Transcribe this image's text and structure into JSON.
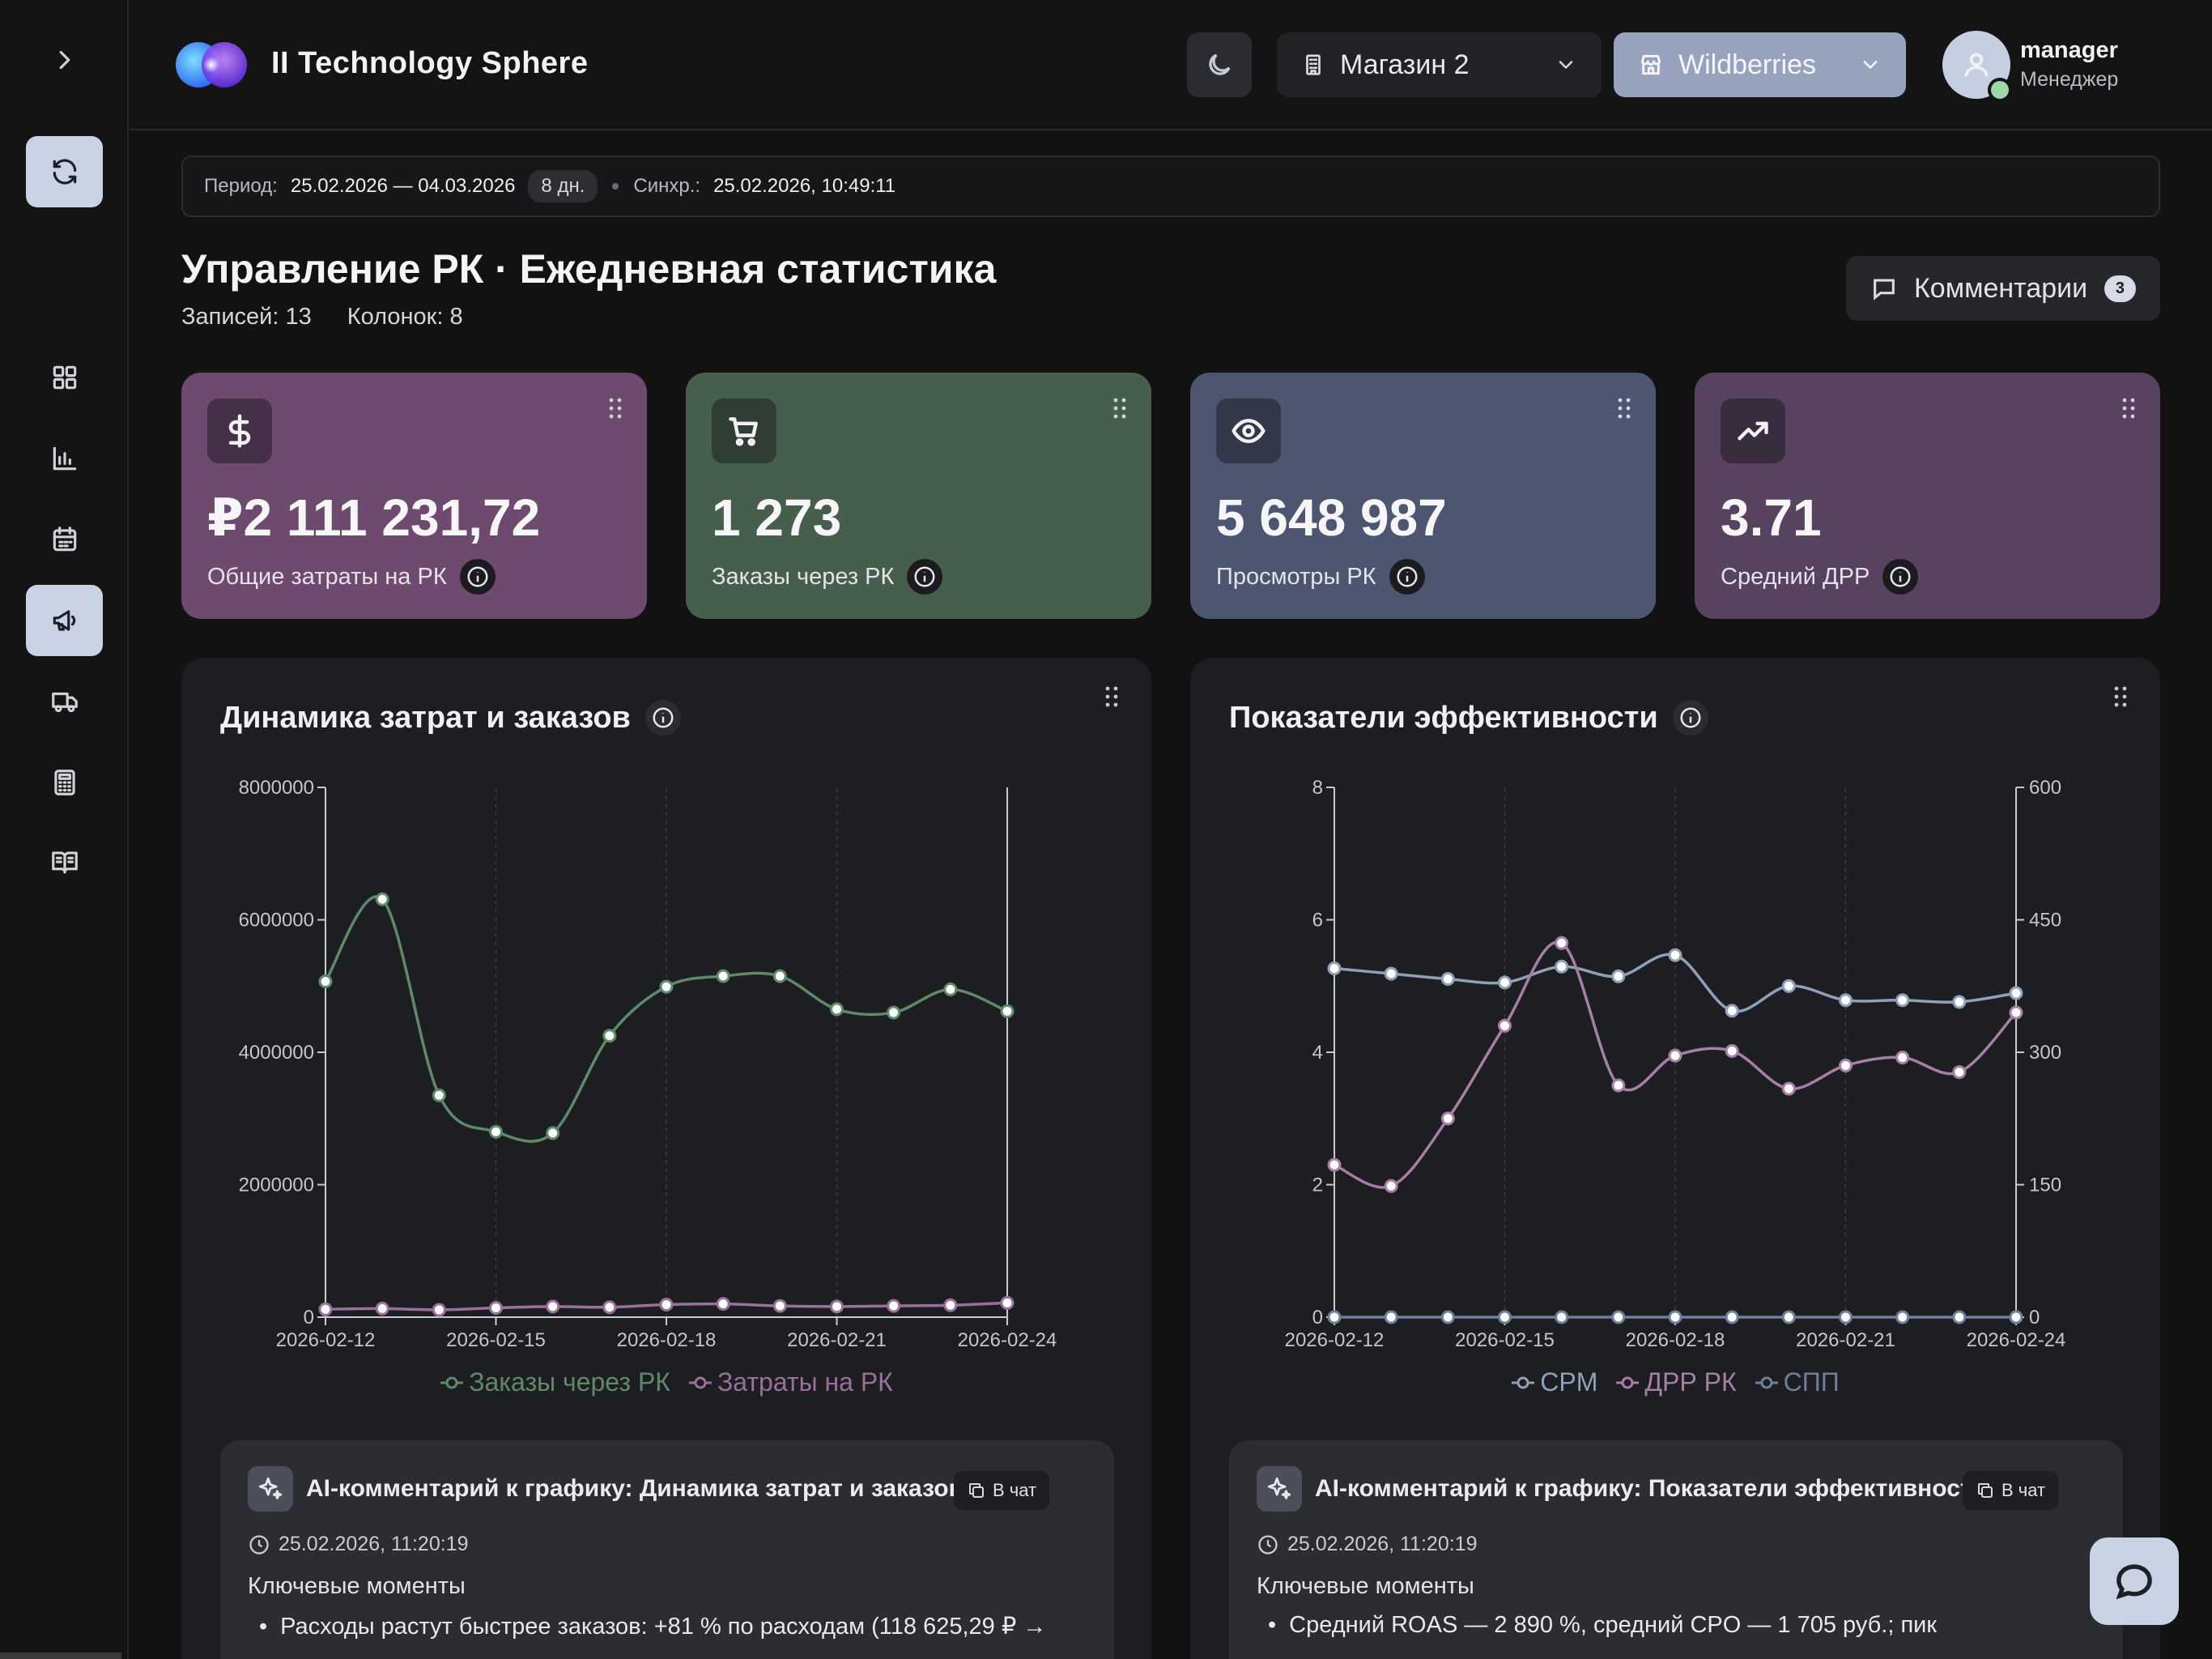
{
  "header": {
    "brand": "II Technology Sphere",
    "shop_select": {
      "value": "Магазин 2"
    },
    "marketplace_select": {
      "value": "Wildberries"
    },
    "user": {
      "name": "manager",
      "role": "Менеджер"
    }
  },
  "sidebar": {
    "items": [
      {
        "icon": "chevron-right-icon"
      },
      {
        "icon": "refresh-icon",
        "active": true
      },
      {
        "icon": "grid-icon"
      },
      {
        "icon": "bar-chart-icon"
      },
      {
        "icon": "calendar-icon"
      },
      {
        "icon": "megaphone-icon",
        "active": true
      },
      {
        "icon": "truck-icon"
      },
      {
        "icon": "calculator-icon"
      },
      {
        "icon": "book-icon"
      }
    ]
  },
  "infobar": {
    "period_label": "Период:",
    "period_value": "25.02.2026 — 04.03.2026",
    "days_badge": "8 дн.",
    "sync_label": "Синхр.:",
    "sync_value": "25.02.2026, 10:49:11"
  },
  "page": {
    "title": "Управление РК · Ежедневная статистика",
    "records": "Записей: 13",
    "columns": "Колонок: 8",
    "comments_label": "Комментарии",
    "comments_count": "3"
  },
  "kpis": [
    {
      "value": "₽2 111 231,72",
      "label": "Общие затраты на РК",
      "icon": "dollar-icon",
      "color": "#6e4a6e"
    },
    {
      "value": "1 273",
      "label": "Заказы через РК",
      "icon": "cart-icon",
      "color": "#465f4d"
    },
    {
      "value": "5 648 987",
      "label": "Просмотры РК",
      "icon": "eye-icon",
      "color": "#4d5670"
    },
    {
      "value": "3.71",
      "label": "Средний ДРР",
      "icon": "trending-up-icon",
      "color": "#574260"
    }
  ],
  "panels": [
    {
      "title": "Динамика затрат и заказов",
      "ai_title": "AI-комментарий к графику: Динамика затрат и заказов",
      "chat_label": "В чат",
      "ai_time": "25.02.2026, 11:20:19",
      "ai_sub": "Ключевые моменты",
      "ai_bullet": "Расходы растут быстрее заказов: +81 % по расходам (118 625,29 ₽ →"
    },
    {
      "title": "Показатели эффективности",
      "ai_title": "AI-комментарий к графику: Показатели эффективности",
      "chat_label": "В чат",
      "ai_time": "25.02.2026, 11:20:19",
      "ai_sub": "Ключевые моменты",
      "ai_bullet": "Средний ROAS — 2 890 %, средний CPO — 1 705 руб.; пик"
    }
  ],
  "chart_data": [
    {
      "type": "line",
      "x": [
        "2026-02-12",
        "2026-02-13",
        "2026-02-14",
        "2026-02-15",
        "2026-02-16",
        "2026-02-17",
        "2026-02-18",
        "2026-02-19",
        "2026-02-20",
        "2026-02-21",
        "2026-02-22",
        "2026-02-23",
        "2026-02-24"
      ],
      "x_ticks": [
        "2026-02-12",
        "2026-02-15",
        "2026-02-18",
        "2026-02-21",
        "2026-02-24"
      ],
      "ylim": [
        0,
        8000000
      ],
      "y_ticks": [
        "0",
        "2000000",
        "4000000",
        "6000000",
        "8000000"
      ],
      "grid": "vertical-dashed",
      "legend": "bottom",
      "series": [
        {
          "name": "Заказы через РК",
          "color": "#5f8a6a",
          "values": [
            5070000,
            6310000,
            3350000,
            2800000,
            2780000,
            4250000,
            4990000,
            5150000,
            5150000,
            4650000,
            4600000,
            4950000,
            4620000
          ]
        },
        {
          "name": "Затраты на РК",
          "color": "#9a6f99",
          "values": [
            118625,
            130000,
            110000,
            140000,
            160000,
            150000,
            190000,
            200000,
            170000,
            160000,
            170000,
            180000,
            215000
          ]
        }
      ]
    },
    {
      "type": "line",
      "x": [
        "2026-02-12",
        "2026-02-13",
        "2026-02-14",
        "2026-02-15",
        "2026-02-16",
        "2026-02-17",
        "2026-02-18",
        "2026-02-19",
        "2026-02-20",
        "2026-02-21",
        "2026-02-22",
        "2026-02-23",
        "2026-02-24"
      ],
      "x_ticks": [
        "2026-02-12",
        "2026-02-15",
        "2026-02-18",
        "2026-02-21",
        "2026-02-24"
      ],
      "ylim_left": [
        0,
        8
      ],
      "y_ticks_left": [
        "0",
        "2",
        "4",
        "6",
        "8"
      ],
      "ylim_right": [
        0,
        600
      ],
      "y_ticks_right": [
        "0",
        "150",
        "300",
        "450",
        "600"
      ],
      "grid": "vertical-dashed",
      "legend": "bottom",
      "series": [
        {
          "name": "CPM",
          "axis": "right",
          "color": "#8fa0b8",
          "values": [
            395,
            389,
            383,
            379,
            397,
            386,
            410,
            347,
            375,
            359,
            359,
            357,
            367
          ]
        },
        {
          "name": "ДРР РК",
          "axis": "left",
          "color": "#a77fa6",
          "values": [
            2.3,
            1.98,
            3.0,
            4.4,
            5.65,
            3.5,
            3.95,
            4.02,
            3.45,
            3.8,
            3.92,
            3.7,
            4.6
          ]
        },
        {
          "name": "СПП",
          "axis": "left",
          "color": "#6f7f9a",
          "values": [
            0,
            0,
            0,
            0,
            0,
            0,
            0,
            0,
            0,
            0,
            0,
            0,
            0
          ]
        }
      ]
    }
  ]
}
